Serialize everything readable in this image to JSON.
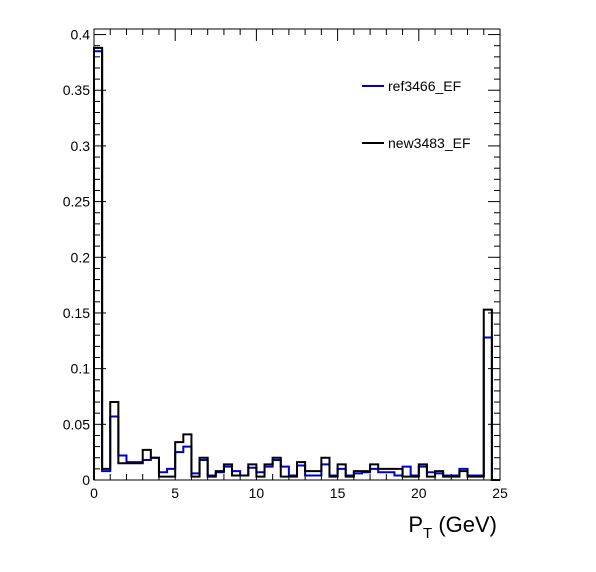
{
  "chart_data": {
    "type": "histogram",
    "title": "",
    "xlabel": "P",
    "xlabel_subscript": "T",
    "xlabel_unit": " (GeV)",
    "ylabel": "",
    "xlim": [
      0,
      25
    ],
    "ylim": [
      0,
      0.405
    ],
    "grid": false,
    "legend_position": "top-right",
    "x_ticks": [
      0,
      5,
      10,
      15,
      20,
      25
    ],
    "y_ticks": [
      0,
      0.05,
      0.1,
      0.15,
      0.2,
      0.25,
      0.3,
      0.35,
      0.4
    ],
    "x_tick_labels": [
      "0",
      "5",
      "10",
      "15",
      "20",
      "25"
    ],
    "y_tick_labels": [
      "0",
      "0.05",
      "0.1",
      "0.15",
      "0.2",
      "0.25",
      "0.3",
      "0.35",
      "0.4"
    ],
    "bin_edges": [
      0,
      0.5,
      1,
      1.5,
      2,
      2.5,
      3,
      3.5,
      4,
      4.5,
      5,
      5.5,
      6,
      6.5,
      7,
      7.5,
      8,
      8.5,
      9,
      9.5,
      10,
      10.5,
      11,
      11.5,
      12,
      12.5,
      13,
      13.5,
      14,
      14.5,
      15,
      15.5,
      16,
      16.5,
      17,
      17.5,
      18,
      18.5,
      19,
      19.5,
      20,
      20.5,
      21,
      21.5,
      22,
      22.5,
      23,
      23.5,
      24,
      24.5,
      25
    ],
    "series": [
      {
        "name": "ref3466_EF",
        "color": "#0000cc",
        "values": [
          0.385,
          0.008,
          0.057,
          0.022,
          0.016,
          0.016,
          0.018,
          0.02,
          0.007,
          0.01,
          0.025,
          0.03,
          0.006,
          0.018,
          0.004,
          0.007,
          0.012,
          0.008,
          0.004,
          0.011,
          0.007,
          0.012,
          0.018,
          0.012,
          0.004,
          0.013,
          0.004,
          0.004,
          0.014,
          0.004,
          0.01,
          0.004,
          0.006,
          0.007,
          0.01,
          0.007,
          0.007,
          0.004,
          0.012,
          0.004,
          0.012,
          0.007,
          0.006,
          0.004,
          0.004,
          0.01,
          0.004,
          0.004,
          0.128,
          0.0
        ]
      },
      {
        "name": "new3483_EF",
        "color": "#000000",
        "values": [
          0.388,
          0.01,
          0.07,
          0.015,
          0.015,
          0.015,
          0.027,
          0.02,
          0.003,
          0.003,
          0.034,
          0.041,
          0.003,
          0.02,
          0.003,
          0.008,
          0.014,
          0.004,
          0.004,
          0.014,
          0.003,
          0.014,
          0.02,
          0.003,
          0.003,
          0.016,
          0.008,
          0.008,
          0.02,
          0.003,
          0.014,
          0.003,
          0.008,
          0.008,
          0.014,
          0.01,
          0.01,
          0.01,
          0.003,
          0.003,
          0.014,
          0.003,
          0.008,
          0.003,
          0.003,
          0.008,
          0.003,
          0.003,
          0.153,
          0.0
        ]
      }
    ]
  }
}
